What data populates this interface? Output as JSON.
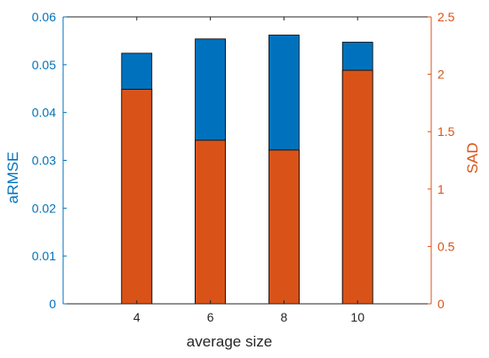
{
  "chart_data": {
    "type": "bar",
    "xlabel": "average size",
    "categories": [
      "4",
      "6",
      "8",
      "10"
    ],
    "series": [
      {
        "name": "aRMSE",
        "axis": "left",
        "color": "#0072BD",
        "values": [
          0.0524,
          0.0554,
          0.0562,
          0.0547
        ]
      },
      {
        "name": "SAD",
        "axis": "right",
        "color": "#D95319",
        "values": [
          1.87,
          1.425,
          1.34,
          2.035
        ]
      }
    ],
    "left_axis": {
      "label": "aRMSE",
      "ylim": [
        0,
        0.06
      ],
      "ticks": [
        "0",
        "0.01",
        "0.02",
        "0.03",
        "0.04",
        "0.05",
        "0.06"
      ],
      "color": "#0072BD"
    },
    "right_axis": {
      "label": "SAD",
      "ylim": [
        0,
        2.5
      ],
      "ticks": [
        "0",
        "0.5",
        "1",
        "1.5",
        "2",
        "2.5"
      ],
      "color": "#D95319"
    },
    "x_range": [
      2,
      12
    ],
    "grid": false,
    "legend": "none"
  }
}
